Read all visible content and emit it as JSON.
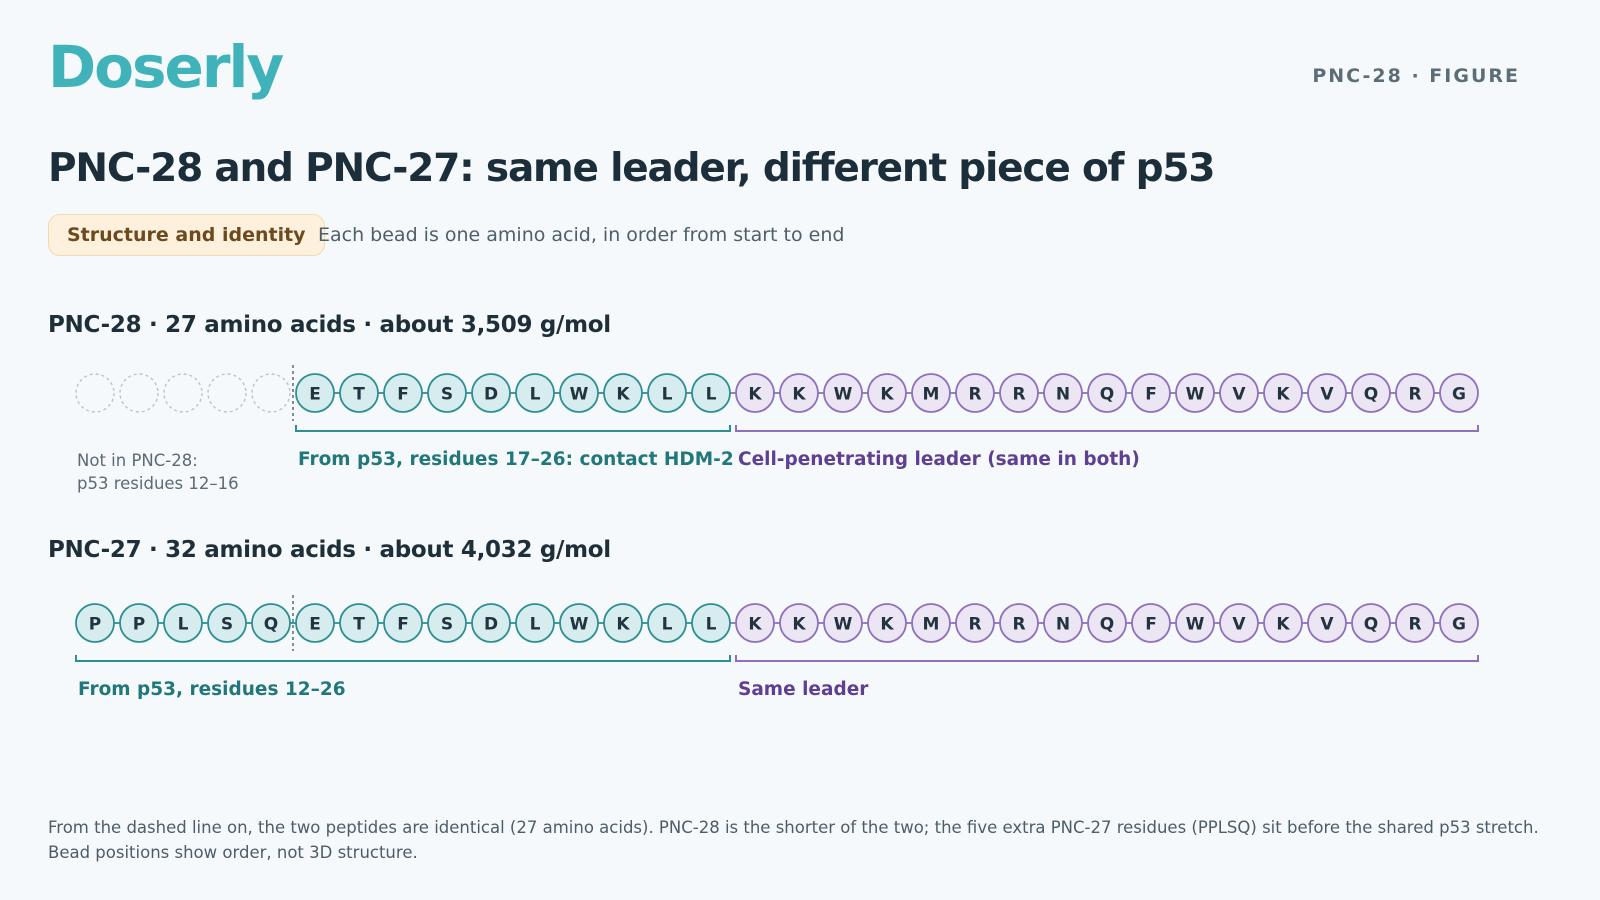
{
  "brand": "Doserly",
  "figure_tag": "PNC-28 · FIGURE",
  "title": "PNC-28 and PNC-27: same leader, different piece of p53",
  "tag_label": "Structure and identity",
  "subtitle": "Each bead is one amino acid, in order from start to end",
  "colors": {
    "teal_stroke": "#2e8f92",
    "teal_fill": "#d6ecee",
    "teal_text": "#21777a",
    "purple_stroke": "#8e70bc",
    "purple_fill": "#ebe5f4",
    "purple_text": "#5e3f92",
    "ghost_stroke": "#b9c4ca"
  },
  "pnc28": {
    "heading": "PNC-28 · 27 amino acids · about 3,509 g/mol",
    "missing_count": 5,
    "p53_residues": [
      "E",
      "T",
      "F",
      "S",
      "D",
      "L",
      "W",
      "K",
      "L",
      "L"
    ],
    "leader_residues": [
      "K",
      "K",
      "W",
      "K",
      "M",
      "R",
      "R",
      "N",
      "Q",
      "F",
      "W",
      "V",
      "K",
      "V",
      "Q",
      "R",
      "G"
    ],
    "missing_label_line1": "Not in PNC-28:",
    "missing_label_line2": "p53 residues 12–16",
    "p53_label": "From p53, residues 17–26: contact HDM-2",
    "leader_label": "Cell-penetrating leader (same in both)"
  },
  "pnc27": {
    "heading": "PNC-27 · 32 amino acids · about 4,032 g/mol",
    "extra_residues": [
      "P",
      "P",
      "L",
      "S",
      "Q"
    ],
    "p53_residues": [
      "E",
      "T",
      "F",
      "S",
      "D",
      "L",
      "W",
      "K",
      "L",
      "L"
    ],
    "leader_residues": [
      "K",
      "K",
      "W",
      "K",
      "M",
      "R",
      "R",
      "N",
      "Q",
      "F",
      "W",
      "V",
      "K",
      "V",
      "Q",
      "R",
      "G"
    ],
    "p53_label": "From p53, residues 12–26",
    "leader_label": "Same leader"
  },
  "footnote": "From the dashed line on, the two peptides are identical (27 amino acids). PNC-28 is the shorter of the two; the five extra PNC-27 residues (PPLSQ) sit before the shared p53 stretch. Bead positions show order, not 3D structure."
}
